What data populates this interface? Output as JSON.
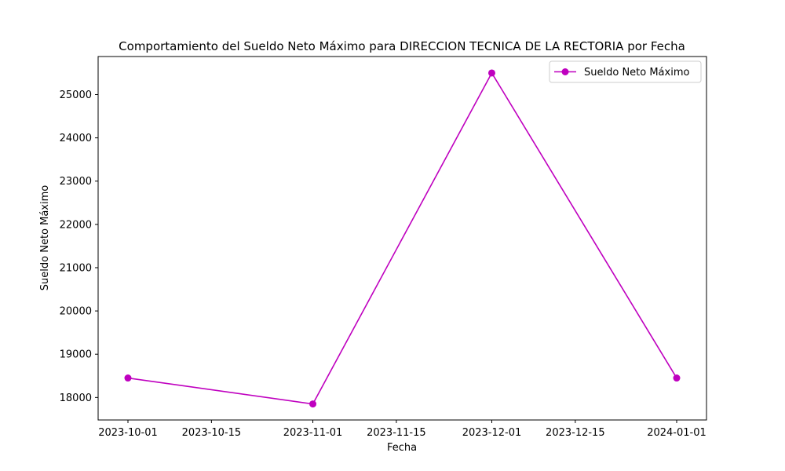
{
  "chart_data": {
    "type": "line",
    "title": "Comportamiento del Sueldo Neto Máximo para DIRECCION TECNICA DE LA RECTORIA por Fecha",
    "xlabel": "Fecha",
    "ylabel": "Sueldo Neto Máximo",
    "x": [
      "2023-10-01",
      "2023-11-01",
      "2023-12-01",
      "2024-01-01"
    ],
    "series": [
      {
        "name": "Sueldo Neto Máximo",
        "color": "#bf00bf",
        "values": [
          18450,
          17850,
          25500,
          18450
        ]
      }
    ],
    "xticks": [
      "2023-10-01",
      "2023-10-15",
      "2023-11-01",
      "2023-11-15",
      "2023-12-01",
      "2023-12-15",
      "2024-01-01"
    ],
    "yticks": [
      18000,
      19000,
      20000,
      21000,
      22000,
      23000,
      24000,
      25000
    ],
    "ylim": [
      17480,
      25880
    ],
    "xlim": [
      "2023-09-26",
      "2024-01-06"
    ],
    "legend": "upper right",
    "grid": false
  }
}
